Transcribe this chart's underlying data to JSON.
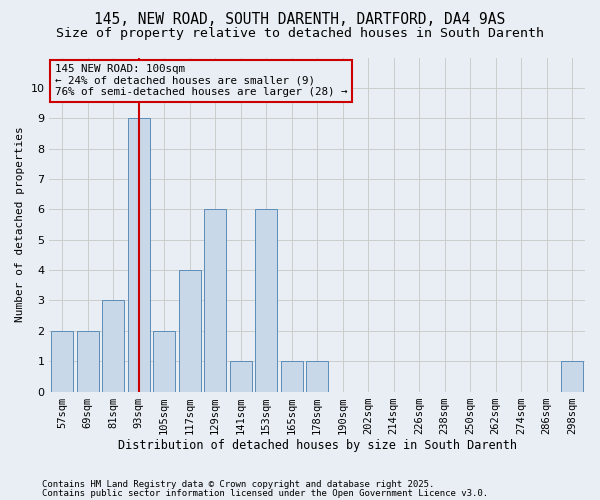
{
  "title1": "145, NEW ROAD, SOUTH DARENTH, DARTFORD, DA4 9AS",
  "title2": "Size of property relative to detached houses in South Darenth",
  "xlabel": "Distribution of detached houses by size in South Darenth",
  "ylabel": "Number of detached properties",
  "categories": [
    "57sqm",
    "69sqm",
    "81sqm",
    "93sqm",
    "105sqm",
    "117sqm",
    "129sqm",
    "141sqm",
    "153sqm",
    "165sqm",
    "178sqm",
    "190sqm",
    "202sqm",
    "214sqm",
    "226sqm",
    "238sqm",
    "250sqm",
    "262sqm",
    "274sqm",
    "286sqm",
    "298sqm"
  ],
  "values": [
    2,
    2,
    3,
    9,
    2,
    4,
    6,
    1,
    6,
    1,
    1,
    0,
    0,
    0,
    0,
    0,
    0,
    0,
    0,
    0,
    1
  ],
  "bar_color": "#c8d8e8",
  "bar_edge_color": "#5b8db8",
  "highlight_index": 3,
  "highlight_line_color": "#cc0000",
  "annotation_text": "145 NEW ROAD: 100sqm\n← 24% of detached houses are smaller (9)\n76% of semi-detached houses are larger (28) →",
  "annotation_box_edge": "#cc0000",
  "ylim": [
    0,
    11
  ],
  "yticks": [
    0,
    1,
    2,
    3,
    4,
    5,
    6,
    7,
    8,
    9,
    10,
    11
  ],
  "grid_color": "#cccccc",
  "bg_color": "#e8eef4",
  "footer1": "Contains HM Land Registry data © Crown copyright and database right 2025.",
  "footer2": "Contains public sector information licensed under the Open Government Licence v3.0.",
  "title1_fontsize": 10.5,
  "title2_fontsize": 9.5,
  "annot_fontsize": 7.8,
  "xlabel_fontsize": 8.5,
  "ylabel_fontsize": 8.0,
  "tick_fontsize": 7.5,
  "footer_fontsize": 6.5
}
